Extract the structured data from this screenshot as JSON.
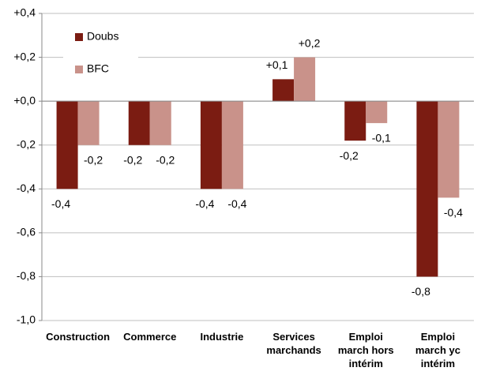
{
  "chart_data": {
    "type": "bar",
    "categories": [
      "Construction",
      "Commerce",
      "Industrie",
      "Services\nmarchands",
      "Emploi\nmarch hors\nintérim",
      "Emploi\nmarch yc\nintérim"
    ],
    "series": [
      {
        "name": "Doubs",
        "color": "#7b1c12",
        "values": [
          -0.4,
          -0.2,
          -0.4,
          0.1,
          -0.18,
          -0.8
        ],
        "value_labels": [
          "-0,4",
          "-0,2",
          "-0,4",
          "+0,1",
          "-0,2",
          "-0,8"
        ]
      },
      {
        "name": "BFC",
        "color": "#c9928a",
        "values": [
          -0.2,
          -0.2,
          -0.4,
          0.2,
          -0.1,
          -0.44
        ],
        "value_labels": [
          "-0,2",
          "-0,2",
          "-0,4",
          "+0,2",
          "-0,1",
          "-0,4"
        ]
      }
    ],
    "ylim": [
      -1.0,
      0.4
    ],
    "yticks": [
      {
        "value": -1.0,
        "label": "-1,0"
      },
      {
        "value": -0.8,
        "label": "-0,8"
      },
      {
        "value": -0.6,
        "label": "-0,6"
      },
      {
        "value": -0.4,
        "label": "-0,4"
      },
      {
        "value": -0.2,
        "label": "-0,2"
      },
      {
        "value": 0.0,
        "label": "+0,0"
      },
      {
        "value": 0.2,
        "label": "+0,2"
      },
      {
        "value": 0.4,
        "label": "+0,4"
      }
    ],
    "grid": true,
    "legend": "top-left"
  }
}
